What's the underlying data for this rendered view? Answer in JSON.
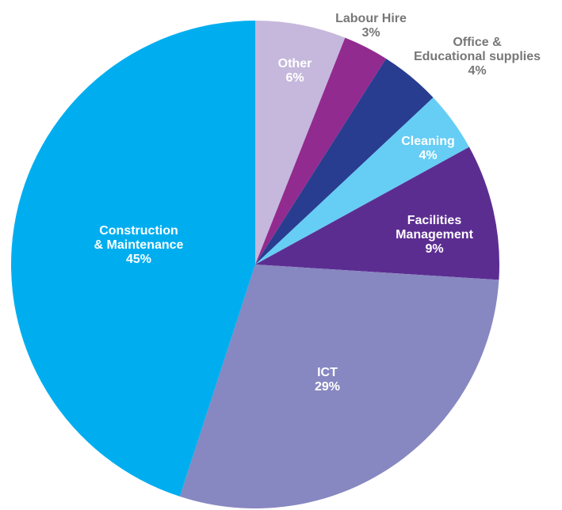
{
  "chart_data": {
    "type": "pie",
    "categories": [
      [
        "Other"
      ],
      [
        "Labour Hire"
      ],
      [
        "Office &",
        "Educational supplies"
      ],
      [
        "Cleaning"
      ],
      [
        "Facilities",
        "Management"
      ],
      [
        "ICT"
      ],
      [
        "Construction",
        "& Maintenance"
      ]
    ],
    "values": [
      6,
      3,
      4,
      4,
      9,
      29,
      45
    ],
    "value_labels": [
      "6%",
      "3%",
      "4%",
      "4%",
      "9%",
      "29%",
      "45%"
    ],
    "colors": [
      "#c5b8dc",
      "#922b8f",
      "#283d8f",
      "#66cdf5",
      "#5c2d91",
      "#8787c1",
      "#00aeef"
    ]
  }
}
